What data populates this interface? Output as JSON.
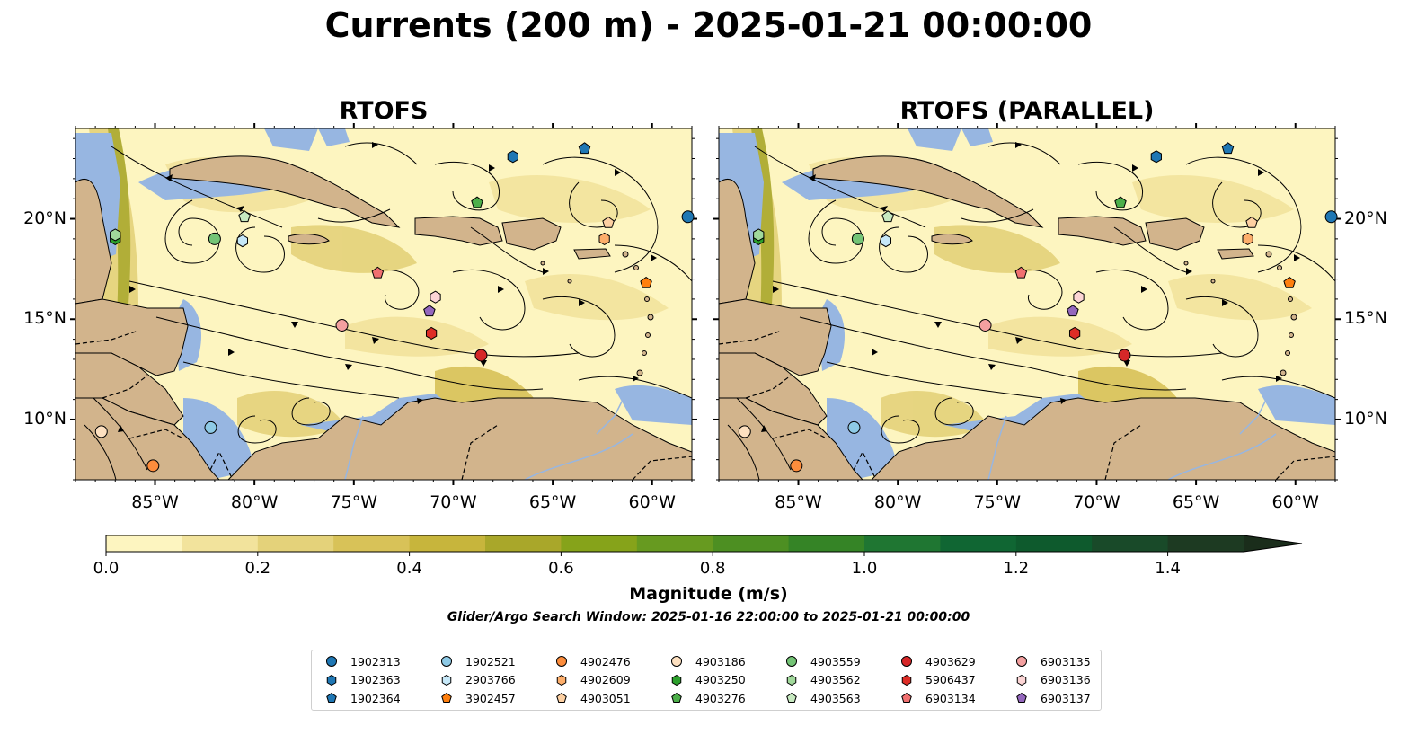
{
  "title": "Currents (200 m) - 2025-01-21 00:00:00",
  "panels": [
    {
      "title": "RTOFS"
    },
    {
      "title": "RTOFS (PARALLEL)"
    }
  ],
  "axes": {
    "lon_ticks": [
      "85°W",
      "80°W",
      "75°W",
      "70°W",
      "65°W",
      "60°W"
    ],
    "lat_ticks": [
      "20°N",
      "15°N",
      "10°N"
    ],
    "lon_range": [
      -89,
      -58
    ],
    "lat_range": [
      7,
      24.5
    ]
  },
  "colorbar": {
    "label": "Magnitude (m/s)",
    "ticks": [
      "0.0",
      "0.2",
      "0.4",
      "0.6",
      "0.8",
      "1.0",
      "1.2",
      "1.4"
    ],
    "range": [
      0,
      1.5
    ],
    "step": 0.1,
    "extend": "max",
    "colors": [
      "#fdf5c0",
      "#f2e39c",
      "#e4d27a",
      "#d8c258",
      "#c7b53c",
      "#a9a72a",
      "#86a31a",
      "#679a20",
      "#4d8f22",
      "#358426",
      "#1f7632",
      "#106633",
      "#0e5a2d",
      "#194a29",
      "#1d3a22",
      "#1a2d1b"
    ]
  },
  "search_window": "Glider/Argo Search Window: 2025-01-16 22:00:00 to 2025-01-21 00:00:00",
  "colors": {
    "land": "#d2b48c",
    "shallow": "#97b6e1",
    "ocean_low": "#fdf5c0",
    "streamline": "#000000"
  },
  "legend": [
    {
      "id": "1902313",
      "marker": "circle",
      "color": "#1f77b4"
    },
    {
      "id": "1902363",
      "marker": "hexagon",
      "color": "#1f77b4"
    },
    {
      "id": "1902364",
      "marker": "pentagon",
      "color": "#1f77b4"
    },
    {
      "id": "1902521",
      "marker": "circle",
      "color": "#8ecae6"
    },
    {
      "id": "2903766",
      "marker": "hexagon",
      "color": "#c6e8f8"
    },
    {
      "id": "3902457",
      "marker": "pentagon",
      "color": "#ff7f0e"
    },
    {
      "id": "4902476",
      "marker": "circle",
      "color": "#fd8d3c"
    },
    {
      "id": "4902609",
      "marker": "hexagon",
      "color": "#fdae6b"
    },
    {
      "id": "4903051",
      "marker": "pentagon",
      "color": "#fdd0a2"
    },
    {
      "id": "4903186",
      "marker": "circle",
      "color": "#fde0c0"
    },
    {
      "id": "4903250",
      "marker": "hexagon",
      "color": "#2ca02c"
    },
    {
      "id": "4903276",
      "marker": "pentagon",
      "color": "#4daf4a"
    },
    {
      "id": "4903559",
      "marker": "circle",
      "color": "#74c476"
    },
    {
      "id": "4903562",
      "marker": "hexagon",
      "color": "#a1d99b"
    },
    {
      "id": "4903563",
      "marker": "pentagon",
      "color": "#c7e9c0"
    },
    {
      "id": "4903629",
      "marker": "circle",
      "color": "#d62728"
    },
    {
      "id": "5906437",
      "marker": "hexagon",
      "color": "#de2d26"
    },
    {
      "id": "6903134",
      "marker": "pentagon",
      "color": "#f07070"
    },
    {
      "id": "6903135",
      "marker": "circle",
      "color": "#f4a0a0"
    },
    {
      "id": "6903136",
      "marker": "hexagon",
      "color": "#fcd5d5"
    },
    {
      "id": "6903137",
      "marker": "pentagon",
      "color": "#9467bd"
    }
  ],
  "floats": [
    {
      "id": "1902313",
      "lon": -58.2,
      "lat": 20.1
    },
    {
      "id": "1902363",
      "lon": -67.0,
      "lat": 23.1
    },
    {
      "id": "1902364",
      "lon": -63.4,
      "lat": 23.5
    },
    {
      "id": "1902521",
      "lon": -82.2,
      "lat": 9.6
    },
    {
      "id": "2903766",
      "lon": -80.6,
      "lat": 18.9
    },
    {
      "id": "3902457",
      "lon": -60.3,
      "lat": 16.8
    },
    {
      "id": "4902476",
      "lon": -85.1,
      "lat": 7.7
    },
    {
      "id": "4902609",
      "lon": -62.4,
      "lat": 19.0
    },
    {
      "id": "4903051",
      "lon": -62.2,
      "lat": 19.8
    },
    {
      "id": "4903186",
      "lon": -87.7,
      "lat": 9.4
    },
    {
      "id": "4903250",
      "lon": -87.0,
      "lat": 19.0
    },
    {
      "id": "4903276",
      "lon": -68.8,
      "lat": 20.8
    },
    {
      "id": "4903559",
      "lon": -82.0,
      "lat": 19.0
    },
    {
      "id": "4903562",
      "lon": -87.0,
      "lat": 19.2
    },
    {
      "id": "4903563",
      "lon": -80.5,
      "lat": 20.1
    },
    {
      "id": "4903629",
      "lon": -68.6,
      "lat": 13.2
    },
    {
      "id": "5906437",
      "lon": -71.1,
      "lat": 14.3
    },
    {
      "id": "6903134",
      "lon": -73.8,
      "lat": 17.3
    },
    {
      "id": "6903135",
      "lon": -75.6,
      "lat": 14.7
    },
    {
      "id": "6903136",
      "lon": -70.9,
      "lat": 16.1
    },
    {
      "id": "6903137",
      "lon": -71.2,
      "lat": 15.4
    }
  ]
}
